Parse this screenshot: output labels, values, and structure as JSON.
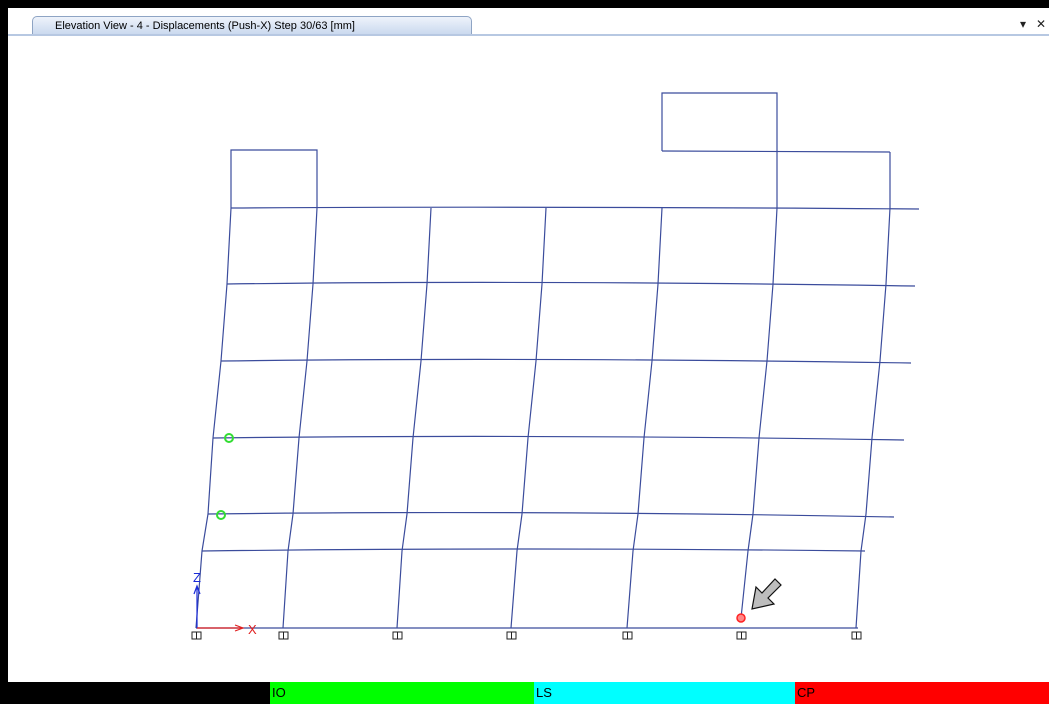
{
  "window": {
    "tab_title": "Elevation View - 4  - Displacements (Push-X)  Step 30/63  [mm]",
    "dropdown_icon": "caret-down-icon",
    "close_icon": "close-x-icon"
  },
  "axes": {
    "z_label": "Z",
    "x_label": "X"
  },
  "legend": [
    {
      "label": "",
      "color": "#000000"
    },
    {
      "label": "IO",
      "color": "#00ff00"
    },
    {
      "label": "LS",
      "color": "#00ffff"
    },
    {
      "label": "CP",
      "color": "#ff0000"
    }
  ],
  "hinges": [
    {
      "state": "IO",
      "color": "#33dd33"
    },
    {
      "state": "IO",
      "color": "#33dd33"
    },
    {
      "state": "CP",
      "color": "#ff2222"
    }
  ],
  "colors": {
    "frame_line": "#3b4c9c",
    "arrow_fill": "#bdbdbd"
  }
}
